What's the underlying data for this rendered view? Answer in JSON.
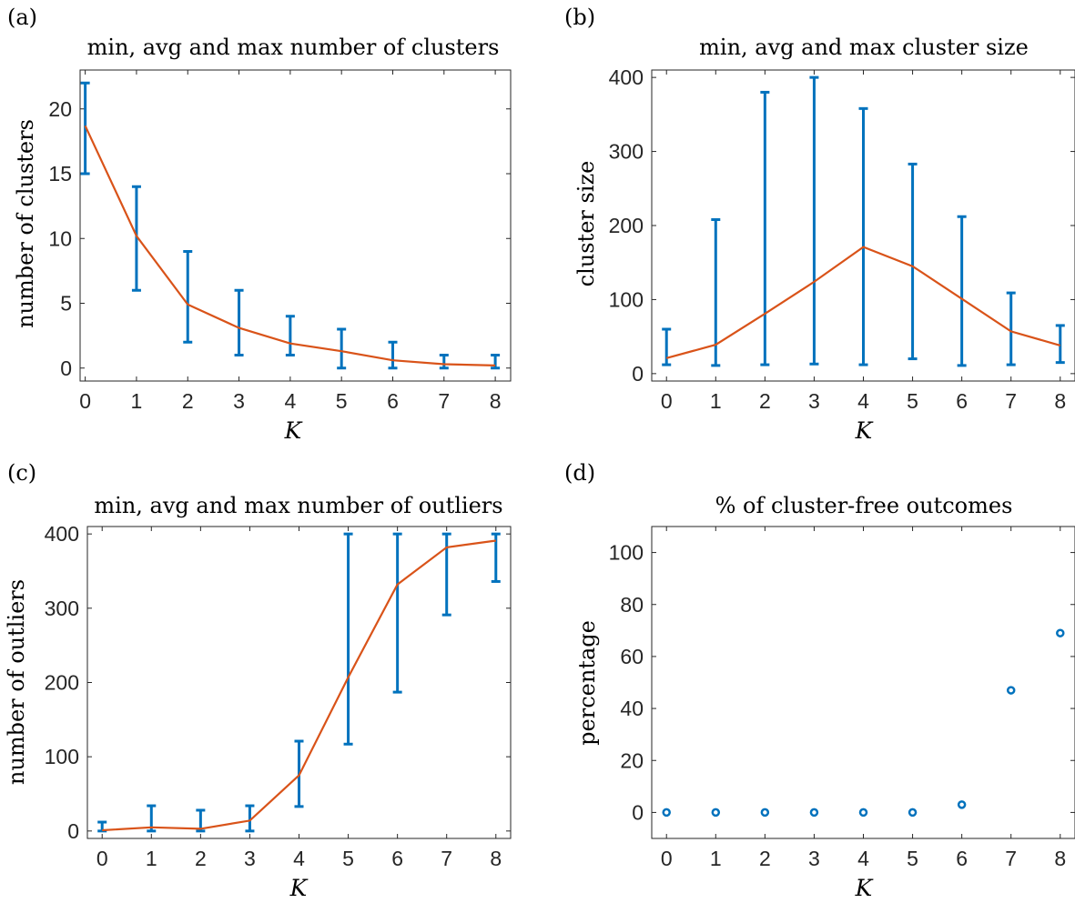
{
  "chart_data": [
    {
      "panel": "(a)",
      "type": "line",
      "title": "min, avg and max number of clusters",
      "xlabel": "K",
      "ylabel": "number of clusters",
      "x": [
        0,
        1,
        2,
        3,
        4,
        5,
        6,
        7,
        8
      ],
      "xlim": [
        -0.1,
        8.3
      ],
      "ylim": [
        -1,
        23
      ],
      "yticks": [
        0,
        5,
        10,
        15,
        20
      ],
      "min": [
        15,
        6,
        2,
        1,
        1,
        0,
        0,
        0,
        0
      ],
      "avg": [
        18.7,
        10.2,
        4.9,
        3.1,
        1.9,
        1.3,
        0.6,
        0.3,
        0.2
      ],
      "max": [
        22,
        14,
        9,
        6,
        4,
        3,
        2,
        1,
        1
      ]
    },
    {
      "panel": "(b)",
      "type": "line",
      "title": "min, avg and max cluster size",
      "xlabel": "K",
      "ylabel": "cluster size",
      "x": [
        0,
        1,
        2,
        3,
        4,
        5,
        6,
        7,
        8
      ],
      "xlim": [
        -0.3,
        8.3
      ],
      "ylim": [
        -10,
        410
      ],
      "yticks": [
        0,
        100,
        200,
        300,
        400
      ],
      "min": [
        12,
        11,
        12,
        13,
        12,
        20,
        11,
        12,
        15
      ],
      "avg": [
        21,
        39,
        81,
        124,
        171,
        145,
        101,
        57,
        38
      ],
      "max": [
        60,
        208,
        380,
        400,
        358,
        283,
        212,
        109,
        65
      ]
    },
    {
      "panel": "(c)",
      "type": "line",
      "title": "min, avg and max number of outliers",
      "xlabel": "K",
      "ylabel": "number of outliers",
      "x": [
        0,
        1,
        2,
        3,
        4,
        5,
        6,
        7,
        8
      ],
      "xlim": [
        -0.3,
        8.3
      ],
      "ylim": [
        -10,
        410
      ],
      "yticks": [
        0,
        100,
        200,
        300,
        400
      ],
      "min": [
        0,
        0,
        0,
        0,
        33,
        117,
        187,
        291,
        336
      ],
      "avg": [
        1,
        5,
        3,
        14,
        75,
        207,
        332,
        382,
        391
      ],
      "max": [
        12,
        34,
        28,
        34,
        121,
        400,
        400,
        400,
        400
      ]
    },
    {
      "panel": "(d)",
      "type": "scatter",
      "title": "% of cluster-free outcomes",
      "xlabel": "K",
      "ylabel": "percentage",
      "x": [
        0,
        1,
        2,
        3,
        4,
        5,
        6,
        7,
        8
      ],
      "xlim": [
        -0.3,
        8.3
      ],
      "ylim": [
        -10,
        110
      ],
      "yticks": [
        0,
        20,
        40,
        60,
        80,
        100
      ],
      "values": [
        0,
        0,
        0,
        0,
        0,
        0,
        3,
        47,
        69
      ]
    }
  ],
  "colors": {
    "errorbar": "#0072BD",
    "average": "#D95319",
    "marker": "#0072BD"
  }
}
